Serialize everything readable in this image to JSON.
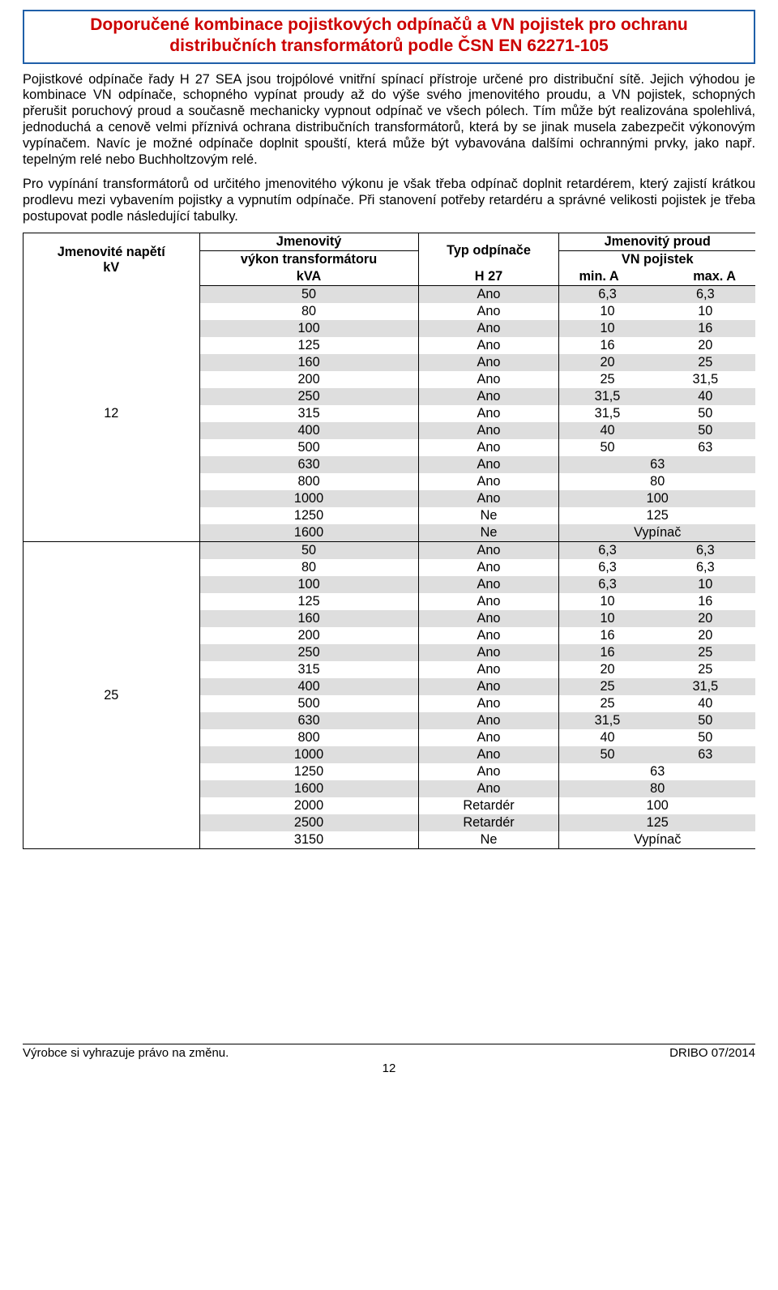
{
  "title": {
    "line1": "Doporučené kombinace pojistkových odpínačů a VN pojistek pro ochranu",
    "line2": "distribučních transformátorů podle ČSN EN 62271-105"
  },
  "paragraphs": {
    "p1": "Pojistkové odpínače řady H 27 SEA jsou trojpólové vnitřní spínací přístroje určené pro distribuční sítě. Jejich výhodou je kombinace VN odpínače, schopného vypínat proudy až do výše svého jmenovitého proudu, a VN pojistek, schopných přerušit poruchový proud a současně mechanicky vypnout odpínač ve všech pólech. Tím může být realizována spolehlivá, jednoduchá a cenově velmi příznivá ochrana distribučních transformátorů, která by se jinak musela zabezpečit výkonovým vypínačem. Navíc je možné odpínače doplnit spouští, která může být vybavována dalšími ochrannými prvky, jako např. tepelným relé nebo Buchholtzovým relé.",
    "p2": "Pro vypínání transformátorů od určitého jmenovitého výkonu je však třeba odpínač doplnit retardérem, který zajistí krátkou prodlevu mezi vybavením pojistky a vypnutím odpínače. Při stanovení potřeby retardéru a správné velikosti pojistek je třeba postupovat podle následující tabulky."
  },
  "table": {
    "headers": {
      "kv_l1": "Jmenovité napětí",
      "kv_l2": "kV",
      "kva_l1": "Jmenovitý",
      "kva_l2": "výkon transformátoru",
      "kva_l3": "kVA",
      "typ_l1": "Typ odpínače",
      "typ_l2": "H 27",
      "cur_l1": "Jmenovitý proud",
      "cur_l2": "VN pojistek",
      "min": "min. A",
      "max": "max. A"
    },
    "groups": [
      {
        "kv": "12",
        "rows": [
          {
            "kva": "50",
            "typ": "Ano",
            "min": "6,3",
            "max": "6,3"
          },
          {
            "kva": "80",
            "typ": "Ano",
            "min": "10",
            "max": "10"
          },
          {
            "kva": "100",
            "typ": "Ano",
            "min": "10",
            "max": "16"
          },
          {
            "kva": "125",
            "typ": "Ano",
            "min": "16",
            "max": "20"
          },
          {
            "kva": "160",
            "typ": "Ano",
            "min": "20",
            "max": "25"
          },
          {
            "kva": "200",
            "typ": "Ano",
            "min": "25",
            "max": "31,5"
          },
          {
            "kva": "250",
            "typ": "Ano",
            "min": "31,5",
            "max": "40"
          },
          {
            "kva": "315",
            "typ": "Ano",
            "min": "31,5",
            "max": "50"
          },
          {
            "kva": "400",
            "typ": "Ano",
            "min": "40",
            "max": "50"
          },
          {
            "kva": "500",
            "typ": "Ano",
            "min": "50",
            "max": "63"
          },
          {
            "kva": "630",
            "typ": "Ano",
            "single": "63"
          },
          {
            "kva": "800",
            "typ": "Ano",
            "single": "80"
          },
          {
            "kva": "1000",
            "typ": "Ano",
            "single": "100"
          },
          {
            "kva": "1250",
            "typ": "Ne",
            "single": "125"
          },
          {
            "kva": "1600",
            "typ": "Ne",
            "single": "Vypínač"
          }
        ]
      },
      {
        "kv": "25",
        "rows": [
          {
            "kva": "50",
            "typ": "Ano",
            "min": "6,3",
            "max": "6,3"
          },
          {
            "kva": "80",
            "typ": "Ano",
            "min": "6,3",
            "max": "6,3"
          },
          {
            "kva": "100",
            "typ": "Ano",
            "min": "6,3",
            "max": "10"
          },
          {
            "kva": "125",
            "typ": "Ano",
            "min": "10",
            "max": "16"
          },
          {
            "kva": "160",
            "typ": "Ano",
            "min": "10",
            "max": "20"
          },
          {
            "kva": "200",
            "typ": "Ano",
            "min": "16",
            "max": "20"
          },
          {
            "kva": "250",
            "typ": "Ano",
            "min": "16",
            "max": "25"
          },
          {
            "kva": "315",
            "typ": "Ano",
            "min": "20",
            "max": "25"
          },
          {
            "kva": "400",
            "typ": "Ano",
            "min": "25",
            "max": "31,5"
          },
          {
            "kva": "500",
            "typ": "Ano",
            "min": "25",
            "max": "40"
          },
          {
            "kva": "630",
            "typ": "Ano",
            "min": "31,5",
            "max": "50"
          },
          {
            "kva": "800",
            "typ": "Ano",
            "min": "40",
            "max": "50"
          },
          {
            "kva": "1000",
            "typ": "Ano",
            "min": "50",
            "max": "63"
          },
          {
            "kva": "1250",
            "typ": "Ano",
            "single": "63"
          },
          {
            "kva": "1600",
            "typ": "Ano",
            "single": "80"
          },
          {
            "kva": "2000",
            "typ": "Retardér",
            "single": "100"
          },
          {
            "kva": "2500",
            "typ": "Retardér",
            "single": "125"
          },
          {
            "kva": "3150",
            "typ": "Ne",
            "single": "Vypínač"
          }
        ]
      }
    ]
  },
  "footer": {
    "left": "Výrobce si vyhrazuje právo na změnu.",
    "right": "DRIBO 07/2014",
    "page": "12"
  },
  "style": {
    "title_border": "#1f5fa8",
    "title_color": "#cc0000",
    "shade_bg": "#dedede",
    "text_color": "#000000",
    "bg": "#ffffff"
  }
}
